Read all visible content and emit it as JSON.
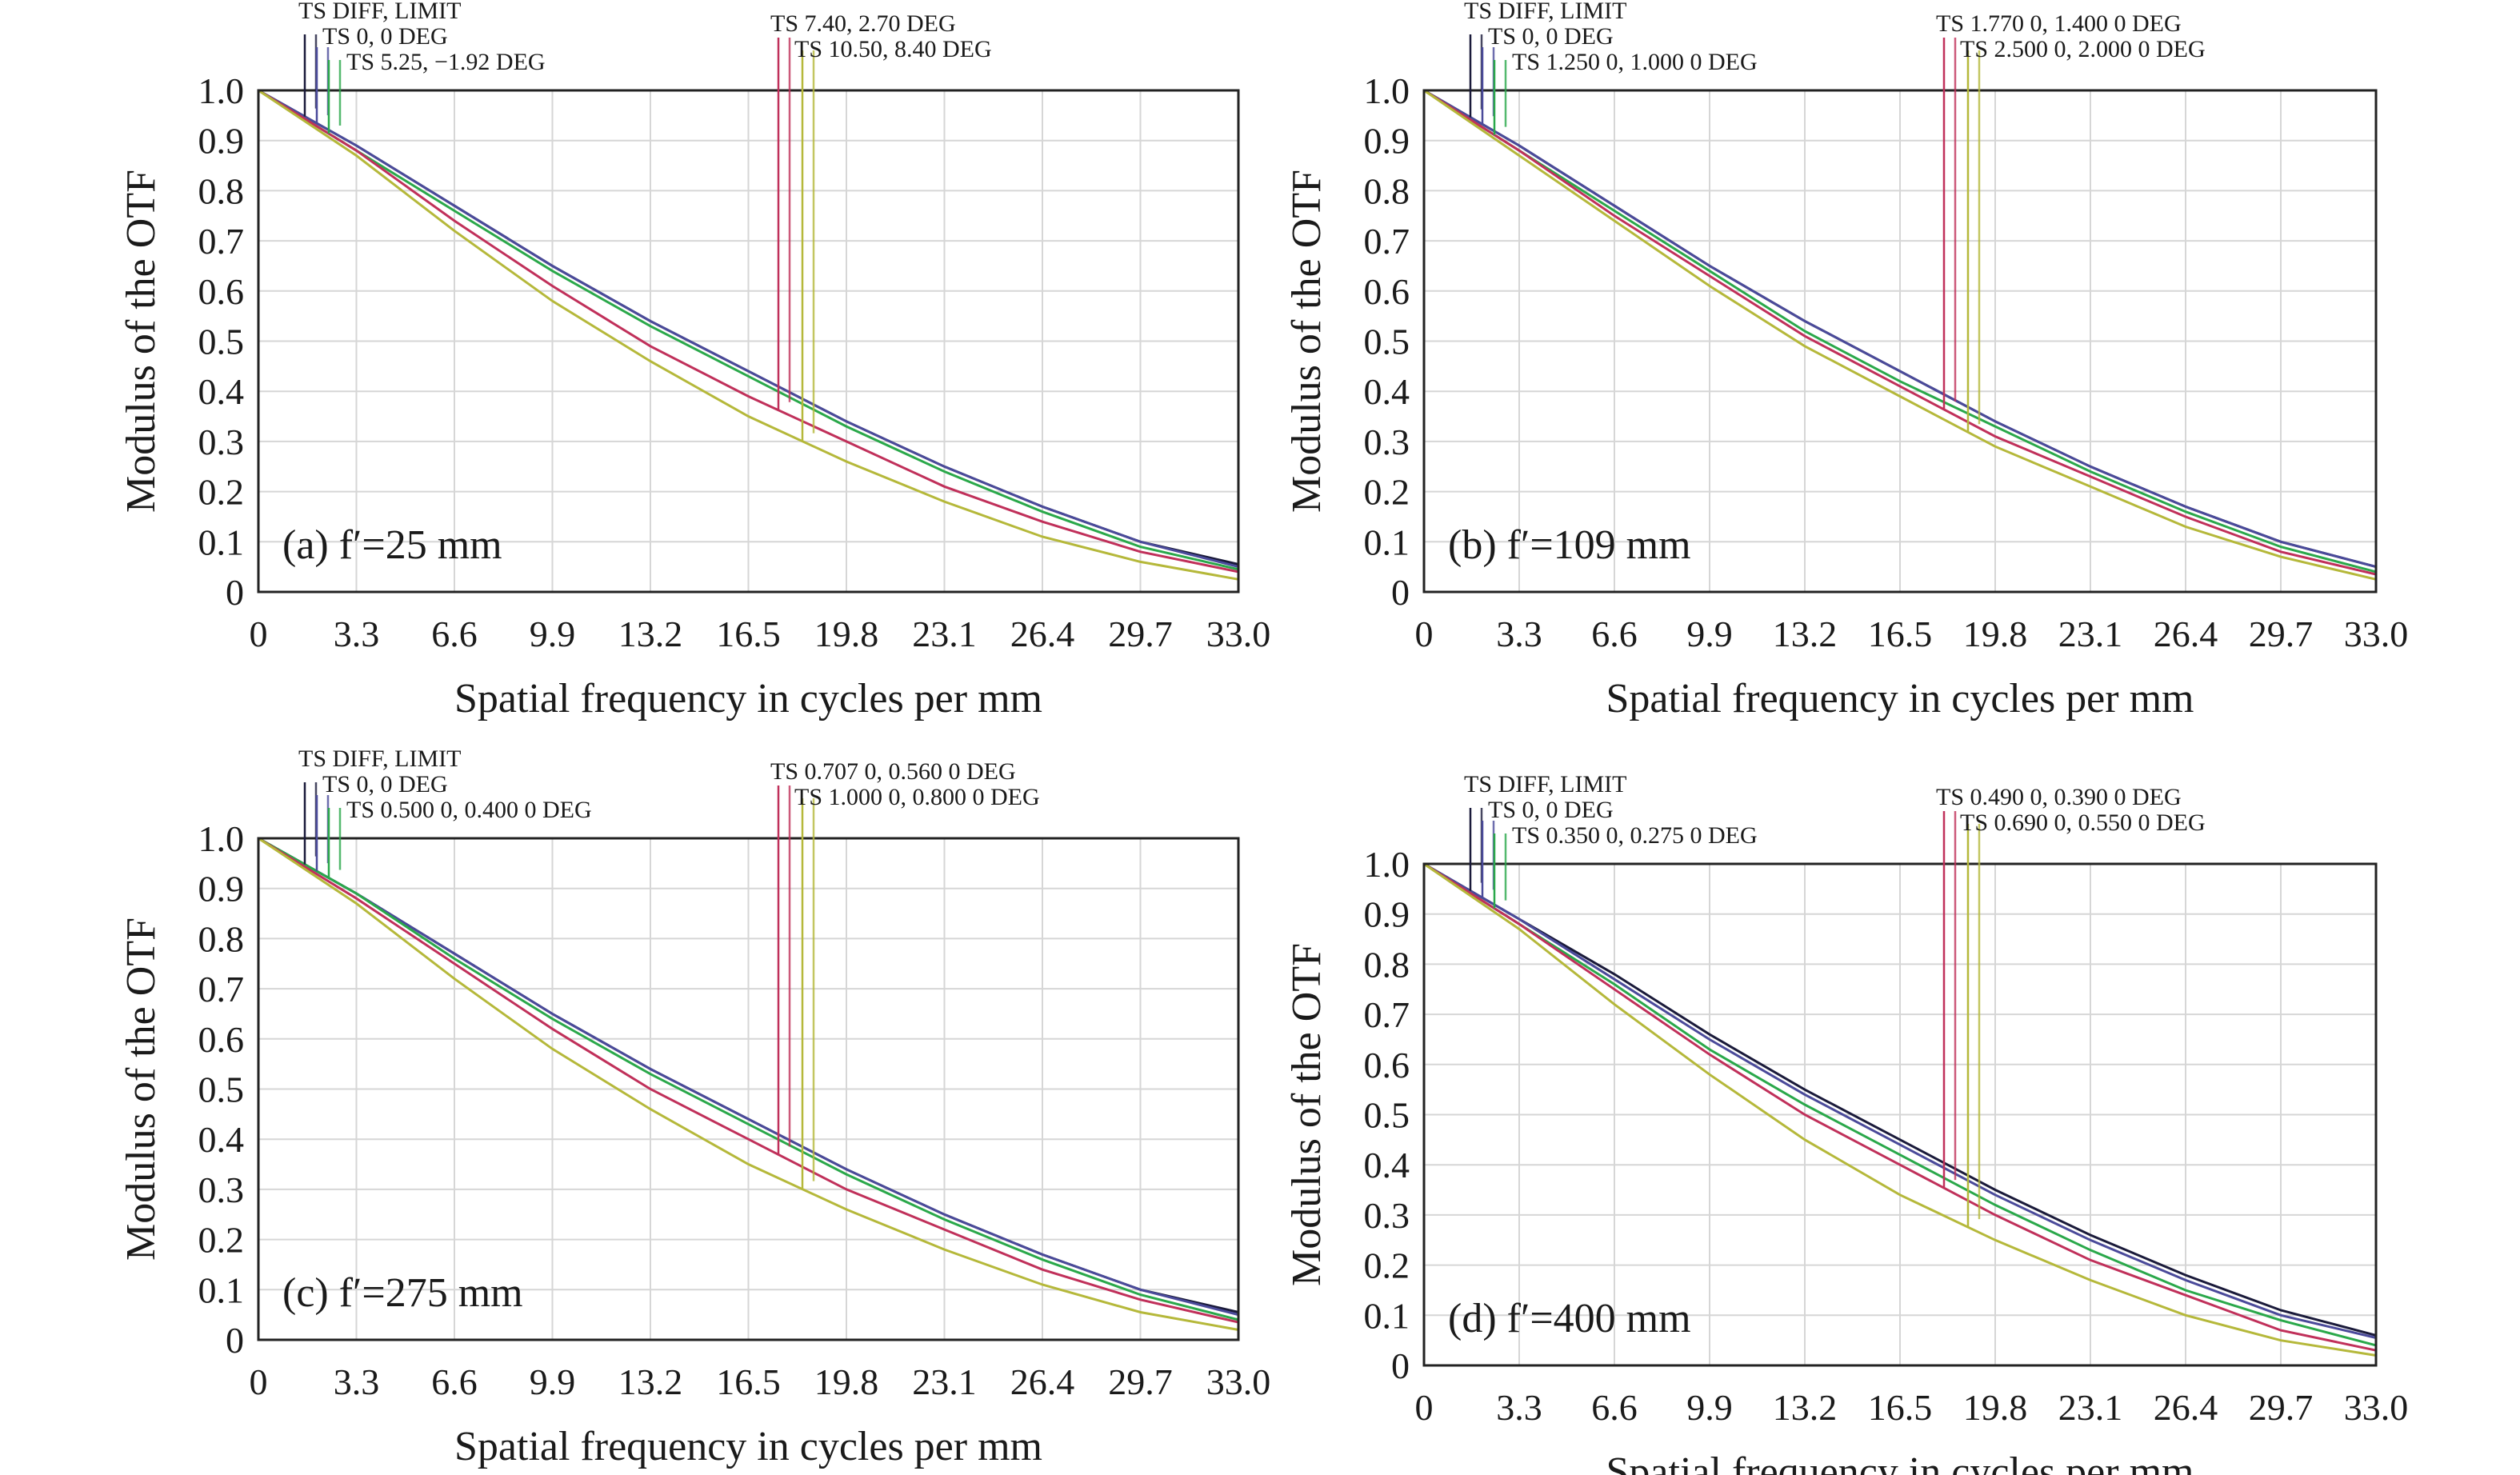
{
  "chart_data": [
    {
      "type": "line",
      "panel_label": "(a) f′=25 mm",
      "xlabel": "Spatial frequency in cycles per mm",
      "ylabel": "Modulus of the OTF",
      "xlim": [
        0,
        33.0
      ],
      "ylim": [
        0,
        1.0
      ],
      "x_ticks": [
        "0",
        "3.3",
        "6.6",
        "9.9",
        "13.2",
        "16.5",
        "19.8",
        "23.1",
        "26.4",
        "29.7",
        "33.0"
      ],
      "y_ticks": [
        "0",
        "0.1",
        "0.2",
        "0.3",
        "0.4",
        "0.5",
        "0.6",
        "0.7",
        "0.8",
        "0.9",
        "1.0"
      ],
      "grid": true,
      "legend": [
        "TS DIFF, LIMIT",
        "TS 0, 0 DEG",
        "TS 5.25, −1.92 DEG",
        "TS 7.40, 2.70 DEG",
        "TS 10.50, 8.40 DEG"
      ],
      "series": [
        {
          "color": "#1a1a3a",
          "x": [
            0,
            3.3,
            6.6,
            9.9,
            13.2,
            16.5,
            19.8,
            23.1,
            26.4,
            29.7,
            33.0
          ],
          "values": [
            1.0,
            0.89,
            0.77,
            0.65,
            0.54,
            0.44,
            0.34,
            0.25,
            0.17,
            0.1,
            0.055
          ]
        },
        {
          "color": "#4a4a9a",
          "x": [
            0,
            3.3,
            6.6,
            9.9,
            13.2,
            16.5,
            19.8,
            23.1,
            26.4,
            29.7,
            33.0
          ],
          "values": [
            1.0,
            0.89,
            0.77,
            0.65,
            0.54,
            0.44,
            0.34,
            0.25,
            0.17,
            0.1,
            0.05
          ]
        },
        {
          "color": "#2aa84a",
          "x": [
            0,
            3.3,
            6.6,
            9.9,
            13.2,
            16.5,
            19.8,
            23.1,
            26.4,
            29.7,
            33.0
          ],
          "values": [
            1.0,
            0.88,
            0.76,
            0.64,
            0.53,
            0.43,
            0.33,
            0.24,
            0.16,
            0.09,
            0.045
          ]
        },
        {
          "color": "#c0305a",
          "x": [
            0,
            3.3,
            6.6,
            9.9,
            13.2,
            16.5,
            19.8,
            23.1,
            26.4,
            29.7,
            33.0
          ],
          "values": [
            1.0,
            0.88,
            0.74,
            0.61,
            0.49,
            0.39,
            0.3,
            0.21,
            0.14,
            0.08,
            0.04
          ]
        },
        {
          "color": "#b5b83a",
          "x": [
            0,
            3.3,
            6.6,
            9.9,
            13.2,
            16.5,
            19.8,
            23.1,
            26.4,
            29.7,
            33.0
          ],
          "values": [
            1.0,
            0.87,
            0.72,
            0.58,
            0.46,
            0.35,
            0.26,
            0.18,
            0.11,
            0.06,
            0.025
          ]
        }
      ]
    },
    {
      "type": "line",
      "panel_label": "(b) f′=109 mm",
      "xlabel": "Spatial frequency in cycles per mm",
      "ylabel": "Modulus of the OTF",
      "xlim": [
        0,
        33.0
      ],
      "ylim": [
        0,
        1.0
      ],
      "x_ticks": [
        "0",
        "3.3",
        "6.6",
        "9.9",
        "13.2",
        "16.5",
        "19.8",
        "23.1",
        "26.4",
        "29.7",
        "33.0"
      ],
      "y_ticks": [
        "0",
        "0.1",
        "0.2",
        "0.3",
        "0.4",
        "0.5",
        "0.6",
        "0.7",
        "0.8",
        "0.9",
        "1.0"
      ],
      "grid": true,
      "legend": [
        "TS DIFF, LIMIT",
        "TS 0, 0 DEG",
        "TS 1.250 0, 1.000 0 DEG",
        "TS 1.770 0, 1.400 0 DEG",
        "TS 2.500 0, 2.000 0 DEG"
      ],
      "series": [
        {
          "color": "#1a1a3a",
          "x": [
            0,
            3.3,
            6.6,
            9.9,
            13.2,
            16.5,
            19.8,
            23.1,
            26.4,
            29.7,
            33.0
          ],
          "values": [
            1.0,
            0.89,
            0.77,
            0.65,
            0.54,
            0.44,
            0.34,
            0.25,
            0.17,
            0.1,
            0.05
          ]
        },
        {
          "color": "#4a4a9a",
          "x": [
            0,
            3.3,
            6.6,
            9.9,
            13.2,
            16.5,
            19.8,
            23.1,
            26.4,
            29.7,
            33.0
          ],
          "values": [
            1.0,
            0.89,
            0.77,
            0.65,
            0.54,
            0.44,
            0.34,
            0.25,
            0.17,
            0.1,
            0.05
          ]
        },
        {
          "color": "#2aa84a",
          "x": [
            0,
            3.3,
            6.6,
            9.9,
            13.2,
            16.5,
            19.8,
            23.1,
            26.4,
            29.7,
            33.0
          ],
          "values": [
            1.0,
            0.88,
            0.76,
            0.64,
            0.52,
            0.42,
            0.33,
            0.24,
            0.16,
            0.09,
            0.04
          ]
        },
        {
          "color": "#c0305a",
          "x": [
            0,
            3.3,
            6.6,
            9.9,
            13.2,
            16.5,
            19.8,
            23.1,
            26.4,
            29.7,
            33.0
          ],
          "values": [
            1.0,
            0.88,
            0.75,
            0.63,
            0.51,
            0.41,
            0.31,
            0.23,
            0.15,
            0.08,
            0.035
          ]
        },
        {
          "color": "#b5b83a",
          "x": [
            0,
            3.3,
            6.6,
            9.9,
            13.2,
            16.5,
            19.8,
            23.1,
            26.4,
            29.7,
            33.0
          ],
          "values": [
            1.0,
            0.87,
            0.74,
            0.61,
            0.49,
            0.39,
            0.29,
            0.21,
            0.13,
            0.07,
            0.025
          ]
        }
      ]
    },
    {
      "type": "line",
      "panel_label": "(c) f′=275 mm",
      "xlabel": "Spatial frequency in cycles per mm",
      "ylabel": "Modulus of the OTF",
      "xlim": [
        0,
        33.0
      ],
      "ylim": [
        0,
        1.0
      ],
      "x_ticks": [
        "0",
        "3.3",
        "6.6",
        "9.9",
        "13.2",
        "16.5",
        "19.8",
        "23.1",
        "26.4",
        "29.7",
        "33.0"
      ],
      "y_ticks": [
        "0",
        "0.1",
        "0.2",
        "0.3",
        "0.4",
        "0.5",
        "0.6",
        "0.7",
        "0.8",
        "0.9",
        "1.0"
      ],
      "grid": true,
      "legend": [
        "TS DIFF, LIMIT",
        "TS 0, 0 DEG",
        "TS 0.500 0, 0.400 0 DEG",
        "TS 0.707 0, 0.560 0 DEG",
        "TS 1.000 0, 0.800 0 DEG"
      ],
      "series": [
        {
          "color": "#1a1a3a",
          "x": [
            0,
            3.3,
            6.6,
            9.9,
            13.2,
            16.5,
            19.8,
            23.1,
            26.4,
            29.7,
            33.0
          ],
          "values": [
            1.0,
            0.89,
            0.77,
            0.65,
            0.54,
            0.44,
            0.34,
            0.25,
            0.17,
            0.1,
            0.055
          ]
        },
        {
          "color": "#4a4a9a",
          "x": [
            0,
            3.3,
            6.6,
            9.9,
            13.2,
            16.5,
            19.8,
            23.1,
            26.4,
            29.7,
            33.0
          ],
          "values": [
            1.0,
            0.89,
            0.77,
            0.65,
            0.54,
            0.44,
            0.34,
            0.25,
            0.17,
            0.1,
            0.05
          ]
        },
        {
          "color": "#2aa84a",
          "x": [
            0,
            3.3,
            6.6,
            9.9,
            13.2,
            16.5,
            19.8,
            23.1,
            26.4,
            29.7,
            33.0
          ],
          "values": [
            1.0,
            0.89,
            0.76,
            0.64,
            0.53,
            0.43,
            0.33,
            0.24,
            0.16,
            0.09,
            0.04
          ]
        },
        {
          "color": "#c0305a",
          "x": [
            0,
            3.3,
            6.6,
            9.9,
            13.2,
            16.5,
            19.8,
            23.1,
            26.4,
            29.7,
            33.0
          ],
          "values": [
            1.0,
            0.88,
            0.75,
            0.62,
            0.5,
            0.4,
            0.3,
            0.22,
            0.14,
            0.08,
            0.035
          ]
        },
        {
          "color": "#b5b83a",
          "x": [
            0,
            3.3,
            6.6,
            9.9,
            13.2,
            16.5,
            19.8,
            23.1,
            26.4,
            29.7,
            33.0
          ],
          "values": [
            1.0,
            0.87,
            0.72,
            0.58,
            0.46,
            0.35,
            0.26,
            0.18,
            0.11,
            0.055,
            0.02
          ]
        }
      ]
    },
    {
      "type": "line",
      "panel_label": "(d) f′=400 mm",
      "xlabel": "Spatial frequency in cycles per mm",
      "ylabel": "Modulus of the OTF",
      "xlim": [
        0,
        33.0
      ],
      "ylim": [
        0,
        1.0
      ],
      "x_ticks": [
        "0",
        "3.3",
        "6.6",
        "9.9",
        "13.2",
        "16.5",
        "19.8",
        "23.1",
        "26.4",
        "29.7",
        "33.0"
      ],
      "y_ticks": [
        "0",
        "0.1",
        "0.2",
        "0.3",
        "0.4",
        "0.5",
        "0.6",
        "0.7",
        "0.8",
        "0.9",
        "1.0"
      ],
      "grid": true,
      "legend": [
        "TS DIFF, LIMIT",
        "TS 0, 0 DEG",
        "TS 0.350 0, 0.275 0 DEG",
        "TS 0.490 0, 0.390 0 DEG",
        "TS 0.690 0, 0.550 0 DEG"
      ],
      "series": [
        {
          "color": "#1a1a3a",
          "x": [
            0,
            3.3,
            6.6,
            9.9,
            13.2,
            16.5,
            19.8,
            23.1,
            26.4,
            29.7,
            33.0
          ],
          "values": [
            1.0,
            0.89,
            0.78,
            0.66,
            0.55,
            0.45,
            0.35,
            0.26,
            0.18,
            0.11,
            0.06
          ]
        },
        {
          "color": "#4a4a9a",
          "x": [
            0,
            3.3,
            6.6,
            9.9,
            13.2,
            16.5,
            19.8,
            23.1,
            26.4,
            29.7,
            33.0
          ],
          "values": [
            1.0,
            0.89,
            0.77,
            0.65,
            0.54,
            0.44,
            0.34,
            0.25,
            0.17,
            0.1,
            0.055
          ]
        },
        {
          "color": "#2aa84a",
          "x": [
            0,
            3.3,
            6.6,
            9.9,
            13.2,
            16.5,
            19.8,
            23.1,
            26.4,
            29.7,
            33.0
          ],
          "values": [
            1.0,
            0.88,
            0.76,
            0.63,
            0.52,
            0.42,
            0.32,
            0.23,
            0.15,
            0.09,
            0.04
          ]
        },
        {
          "color": "#c0305a",
          "x": [
            0,
            3.3,
            6.6,
            9.9,
            13.2,
            16.5,
            19.8,
            23.1,
            26.4,
            29.7,
            33.0
          ],
          "values": [
            1.0,
            0.88,
            0.75,
            0.62,
            0.5,
            0.4,
            0.3,
            0.21,
            0.14,
            0.07,
            0.03
          ]
        },
        {
          "color": "#b5b83a",
          "x": [
            0,
            3.3,
            6.6,
            9.9,
            13.2,
            16.5,
            19.8,
            23.1,
            26.4,
            29.7,
            33.0
          ],
          "values": [
            1.0,
            0.87,
            0.72,
            0.58,
            0.45,
            0.34,
            0.25,
            0.17,
            0.1,
            0.05,
            0.02
          ]
        }
      ]
    }
  ]
}
